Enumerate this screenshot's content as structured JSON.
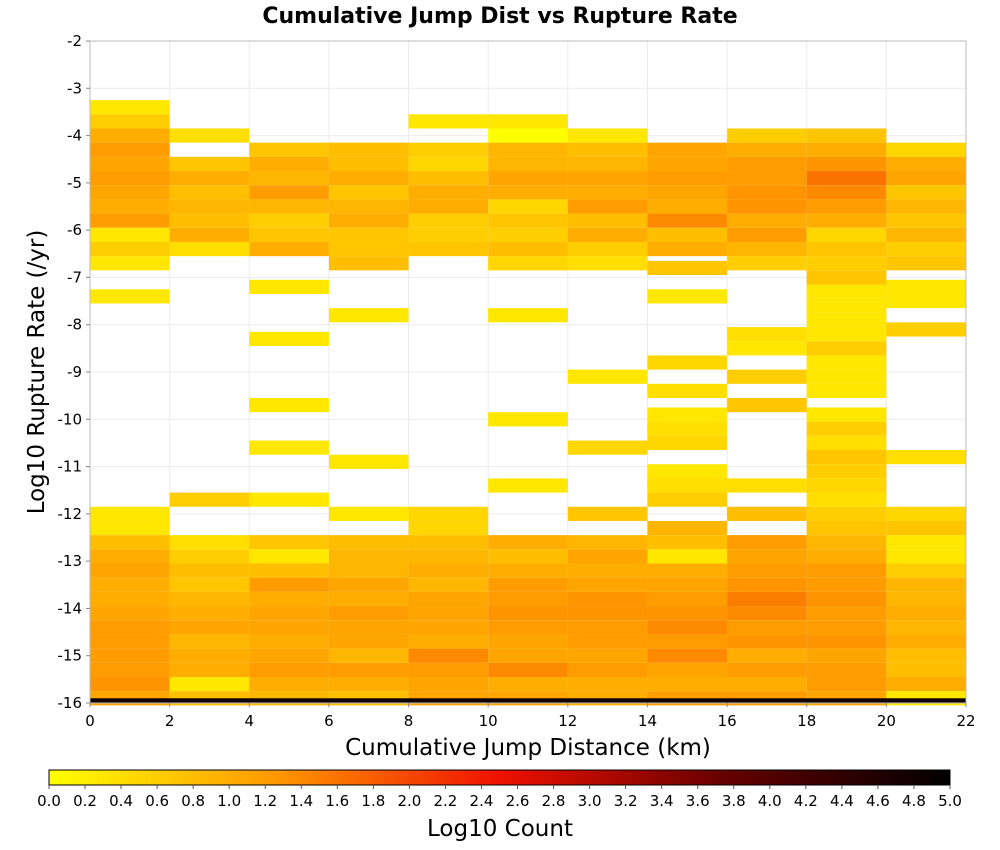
{
  "chart_data": {
    "type": "heatmap",
    "title": "Cumulative Jump Dist vs Rupture Rate",
    "xlabel": "Cumulative Jump Distance (km)",
    "ylabel": "Log10 Rupture Rate (/yr)",
    "colorbar_label": "Log10 Count",
    "xlim": [
      0,
      22
    ],
    "ylim": [
      -16,
      -2
    ],
    "x_ticks": [
      "0",
      "2",
      "4",
      "6",
      "8",
      "10",
      "12",
      "14",
      "16",
      "18",
      "20",
      "22"
    ],
    "y_ticks": [
      "-2",
      "-3",
      "-4",
      "-5",
      "-6",
      "-7",
      "-8",
      "-9",
      "-10",
      "-11",
      "-12",
      "-13",
      "-14",
      "-15",
      "-16"
    ],
    "colorbar_ticks": [
      "0.0",
      "0.2",
      "0.4",
      "0.6",
      "0.8",
      "1.0",
      "1.2",
      "1.4",
      "1.6",
      "1.8",
      "2.0",
      "2.2",
      "2.4",
      "2.6",
      "2.8",
      "3.0",
      "3.2",
      "3.4",
      "3.6",
      "3.8",
      "4.0",
      "4.2",
      "4.4",
      "4.6",
      "4.8",
      "5.0"
    ],
    "colorbar_range": [
      0,
      5
    ],
    "colormap": [
      "#ffff00",
      "#ff9900",
      "#ee1100",
      "#660000",
      "#000000"
    ],
    "grid": true,
    "x_bin_width": 2,
    "y_bin_height": 0.3,
    "columns": [
      {
        "x": 1,
        "cells": [
          [
            -3.4,
            0.3
          ],
          [
            -3.7,
            0.6
          ],
          [
            -4.0,
            1.0
          ],
          [
            -4.3,
            1.2
          ],
          [
            -4.6,
            1.1
          ],
          [
            -4.9,
            1.2
          ],
          [
            -5.2,
            1.1
          ],
          [
            -5.5,
            1.0
          ],
          [
            -5.8,
            1.2
          ],
          [
            -6.1,
            0.3
          ],
          [
            -6.4,
            0.6
          ],
          [
            -6.7,
            0.3
          ],
          [
            -7.4,
            0.3
          ],
          [
            -12.0,
            0.3
          ],
          [
            -12.3,
            0.3
          ],
          [
            -12.6,
            0.8
          ],
          [
            -12.9,
            1.0
          ],
          [
            -13.2,
            1.1
          ],
          [
            -13.5,
            1.0
          ],
          [
            -13.8,
            1.0
          ],
          [
            -14.1,
            1.1
          ],
          [
            -14.4,
            1.2
          ],
          [
            -14.7,
            1.2
          ],
          [
            -15.0,
            1.2
          ],
          [
            -15.3,
            1.2
          ],
          [
            -15.6,
            1.3
          ],
          [
            -15.9,
            1.1
          ]
        ]
      },
      {
        "x": 3,
        "cells": [
          [
            -4.0,
            0.4
          ],
          [
            -4.6,
            0.7
          ],
          [
            -4.9,
            1.0
          ],
          [
            -5.2,
            0.8
          ],
          [
            -5.5,
            0.9
          ],
          [
            -5.8,
            0.8
          ],
          [
            -6.1,
            1.0
          ],
          [
            -6.4,
            0.4
          ],
          [
            -11.7,
            0.6
          ],
          [
            -12.6,
            0.4
          ],
          [
            -12.9,
            0.6
          ],
          [
            -13.2,
            0.8
          ],
          [
            -13.5,
            0.7
          ],
          [
            -13.8,
            0.9
          ],
          [
            -14.1,
            1.0
          ],
          [
            -14.4,
            1.1
          ],
          [
            -14.7,
            0.9
          ],
          [
            -15.0,
            1.0
          ],
          [
            -15.3,
            1.0
          ],
          [
            -15.6,
            0.3
          ],
          [
            -15.9,
            0.8
          ]
        ]
      },
      {
        "x": 5,
        "cells": [
          [
            -4.3,
            0.7
          ],
          [
            -4.6,
            1.0
          ],
          [
            -4.9,
            0.9
          ],
          [
            -5.2,
            1.2
          ],
          [
            -5.5,
            0.9
          ],
          [
            -5.8,
            0.6
          ],
          [
            -6.1,
            0.7
          ],
          [
            -6.4,
            1.0
          ],
          [
            -7.2,
            0.3
          ],
          [
            -8.3,
            0.3
          ],
          [
            -9.7,
            0.3
          ],
          [
            -10.6,
            0.3
          ],
          [
            -11.7,
            0.3
          ],
          [
            -12.6,
            0.7
          ],
          [
            -12.9,
            0.3
          ],
          [
            -13.2,
            0.8
          ],
          [
            -13.5,
            1.2
          ],
          [
            -13.8,
            1.0
          ],
          [
            -14.1,
            1.1
          ],
          [
            -14.4,
            1.1
          ],
          [
            -14.7,
            1.0
          ],
          [
            -15.0,
            1.1
          ],
          [
            -15.3,
            1.2
          ],
          [
            -15.6,
            1.0
          ],
          [
            -15.9,
            0.9
          ]
        ]
      },
      {
        "x": 7,
        "cells": [
          [
            -4.3,
            0.8
          ],
          [
            -4.6,
            0.8
          ],
          [
            -4.9,
            1.0
          ],
          [
            -5.2,
            0.7
          ],
          [
            -5.5,
            0.9
          ],
          [
            -5.8,
            1.0
          ],
          [
            -6.1,
            0.7
          ],
          [
            -6.4,
            0.7
          ],
          [
            -6.7,
            0.8
          ],
          [
            -7.8,
            0.3
          ],
          [
            -10.9,
            0.3
          ],
          [
            -12.0,
            0.3
          ],
          [
            -12.6,
            0.8
          ],
          [
            -12.9,
            0.9
          ],
          [
            -13.2,
            0.9
          ],
          [
            -13.5,
            1.1
          ],
          [
            -13.8,
            1.0
          ],
          [
            -14.1,
            1.2
          ],
          [
            -14.4,
            1.1
          ],
          [
            -14.7,
            1.1
          ],
          [
            -15.0,
            0.9
          ],
          [
            -15.3,
            1.2
          ],
          [
            -15.6,
            1.0
          ],
          [
            -15.9,
            0.8
          ]
        ]
      },
      {
        "x": 9,
        "cells": [
          [
            -3.7,
            0.3
          ],
          [
            -4.3,
            0.6
          ],
          [
            -4.6,
            0.5
          ],
          [
            -4.9,
            0.8
          ],
          [
            -5.2,
            1.0
          ],
          [
            -5.5,
            1.0
          ],
          [
            -5.8,
            0.6
          ],
          [
            -6.1,
            0.6
          ],
          [
            -6.4,
            0.7
          ],
          [
            -12.0,
            0.5
          ],
          [
            -12.3,
            0.5
          ],
          [
            -12.6,
            0.8
          ],
          [
            -12.9,
            0.9
          ],
          [
            -13.2,
            1.0
          ],
          [
            -13.5,
            0.9
          ],
          [
            -13.8,
            1.1
          ],
          [
            -14.1,
            1.1
          ],
          [
            -14.4,
            1.1
          ],
          [
            -14.7,
            1.0
          ],
          [
            -15.0,
            1.4
          ],
          [
            -15.3,
            1.2
          ],
          [
            -15.6,
            1.1
          ],
          [
            -15.9,
            1.1
          ]
        ]
      },
      {
        "x": 11,
        "cells": [
          [
            -3.7,
            0.3
          ],
          [
            -4.0,
            0.0
          ],
          [
            -4.3,
            0.9
          ],
          [
            -4.6,
            0.9
          ],
          [
            -4.9,
            1.1
          ],
          [
            -5.2,
            1.0
          ],
          [
            -5.5,
            0.5
          ],
          [
            -5.8,
            0.7
          ],
          [
            -6.1,
            0.6
          ],
          [
            -6.4,
            0.8
          ],
          [
            -6.7,
            0.5
          ],
          [
            -7.8,
            0.3
          ],
          [
            -10.0,
            0.3
          ],
          [
            -11.4,
            0.3
          ],
          [
            -12.6,
            1.0
          ],
          [
            -12.9,
            0.8
          ],
          [
            -13.2,
            1.0
          ],
          [
            -13.5,
            1.2
          ],
          [
            -13.8,
            1.2
          ],
          [
            -14.1,
            1.3
          ],
          [
            -14.4,
            1.2
          ],
          [
            -14.7,
            1.1
          ],
          [
            -15.0,
            1.1
          ],
          [
            -15.3,
            1.4
          ],
          [
            -15.6,
            1.0
          ],
          [
            -15.9,
            1.1
          ]
        ]
      },
      {
        "x": 13,
        "cells": [
          [
            -4.0,
            0.3
          ],
          [
            -4.3,
            0.8
          ],
          [
            -4.6,
            0.9
          ],
          [
            -4.9,
            1.1
          ],
          [
            -5.2,
            1.0
          ],
          [
            -5.5,
            1.2
          ],
          [
            -5.8,
            0.8
          ],
          [
            -6.1,
            1.0
          ],
          [
            -6.4,
            0.6
          ],
          [
            -6.7,
            0.4
          ],
          [
            -9.1,
            0.3
          ],
          [
            -10.6,
            0.5
          ],
          [
            -12.0,
            0.7
          ],
          [
            -12.6,
            0.9
          ],
          [
            -12.9,
            1.1
          ],
          [
            -13.2,
            1.0
          ],
          [
            -13.5,
            1.1
          ],
          [
            -13.8,
            1.3
          ],
          [
            -14.1,
            1.3
          ],
          [
            -14.4,
            1.2
          ],
          [
            -14.7,
            1.2
          ],
          [
            -15.0,
            1.1
          ],
          [
            -15.3,
            1.2
          ],
          [
            -15.6,
            1.0
          ],
          [
            -15.9,
            1.0
          ]
        ]
      },
      {
        "x": 15,
        "cells": [
          [
            -4.3,
            1.1
          ],
          [
            -4.6,
            1.1
          ],
          [
            -4.9,
            1.2
          ],
          [
            -5.2,
            1.1
          ],
          [
            -5.5,
            1.0
          ],
          [
            -5.8,
            1.4
          ],
          [
            -6.1,
            0.8
          ],
          [
            -6.4,
            1.0
          ],
          [
            -6.8,
            0.7
          ],
          [
            -7.4,
            0.3
          ],
          [
            -8.8,
            0.5
          ],
          [
            -9.4,
            0.4
          ],
          [
            -9.9,
            0.3
          ],
          [
            -10.2,
            0.4
          ],
          [
            -10.5,
            0.5
          ],
          [
            -11.1,
            0.3
          ],
          [
            -11.4,
            0.4
          ],
          [
            -11.7,
            0.6
          ],
          [
            -12.3,
            0.9
          ],
          [
            -12.6,
            0.8
          ],
          [
            -12.9,
            0.3
          ],
          [
            -13.2,
            1.0
          ],
          [
            -13.5,
            1.1
          ],
          [
            -13.8,
            1.2
          ],
          [
            -14.1,
            1.3
          ],
          [
            -14.4,
            1.4
          ],
          [
            -14.7,
            1.2
          ],
          [
            -15.0,
            1.4
          ],
          [
            -15.3,
            1.1
          ],
          [
            -15.6,
            1.0
          ],
          [
            -15.9,
            1.2
          ]
        ]
      },
      {
        "x": 17,
        "cells": [
          [
            -4.0,
            0.6
          ],
          [
            -4.3,
            1.0
          ],
          [
            -4.6,
            1.2
          ],
          [
            -4.9,
            1.2
          ],
          [
            -5.2,
            1.3
          ],
          [
            -5.5,
            1.3
          ],
          [
            -5.8,
            1.0
          ],
          [
            -6.1,
            1.2
          ],
          [
            -6.4,
            0.9
          ],
          [
            -6.7,
            0.6
          ],
          [
            -8.2,
            0.4
          ],
          [
            -8.5,
            0.3
          ],
          [
            -9.1,
            0.6
          ],
          [
            -9.7,
            0.7
          ],
          [
            -11.4,
            0.4
          ],
          [
            -12.0,
            0.8
          ],
          [
            -12.6,
            1.2
          ],
          [
            -12.9,
            1.1
          ],
          [
            -13.2,
            1.2
          ],
          [
            -13.5,
            1.3
          ],
          [
            -13.8,
            1.5
          ],
          [
            -14.1,
            1.4
          ],
          [
            -14.4,
            1.2
          ],
          [
            -14.7,
            1.3
          ],
          [
            -15.0,
            1.0
          ],
          [
            -15.3,
            1.2
          ],
          [
            -15.6,
            1.0
          ],
          [
            -15.9,
            1.2
          ]
        ]
      },
      {
        "x": 19,
        "cells": [
          [
            -4.0,
            0.7
          ],
          [
            -4.3,
            1.0
          ],
          [
            -4.6,
            1.3
          ],
          [
            -4.9,
            1.6
          ],
          [
            -5.2,
            1.4
          ],
          [
            -5.5,
            1.2
          ],
          [
            -5.8,
            1.0
          ],
          [
            -6.1,
            0.5
          ],
          [
            -6.4,
            0.7
          ],
          [
            -6.7,
            0.6
          ],
          [
            -7.0,
            0.7
          ],
          [
            -7.3,
            0.3
          ],
          [
            -7.6,
            0.3
          ],
          [
            -7.9,
            0.3
          ],
          [
            -8.2,
            0.3
          ],
          [
            -8.5,
            0.6
          ],
          [
            -8.8,
            0.3
          ],
          [
            -9.1,
            0.3
          ],
          [
            -9.4,
            0.3
          ],
          [
            -9.9,
            0.3
          ],
          [
            -10.2,
            0.6
          ],
          [
            -10.5,
            0.4
          ],
          [
            -10.8,
            0.7
          ],
          [
            -11.1,
            0.6
          ],
          [
            -11.4,
            0.5
          ],
          [
            -11.7,
            0.4
          ],
          [
            -12.0,
            0.6
          ],
          [
            -12.3,
            0.7
          ],
          [
            -12.6,
            0.9
          ],
          [
            -12.9,
            1.0
          ],
          [
            -13.2,
            1.2
          ],
          [
            -13.5,
            1.2
          ],
          [
            -13.8,
            1.3
          ],
          [
            -14.1,
            1.2
          ],
          [
            -14.4,
            1.2
          ],
          [
            -14.7,
            1.3
          ],
          [
            -15.0,
            1.1
          ],
          [
            -15.3,
            1.2
          ],
          [
            -15.6,
            1.2
          ],
          [
            -15.9,
            1.1
          ]
        ]
      },
      {
        "x": 21,
        "cells": [
          [
            -4.3,
            0.5
          ],
          [
            -4.6,
            1.0
          ],
          [
            -4.9,
            1.1
          ],
          [
            -5.2,
            0.7
          ],
          [
            -5.5,
            0.9
          ],
          [
            -5.8,
            0.7
          ],
          [
            -6.1,
            0.9
          ],
          [
            -6.4,
            0.6
          ],
          [
            -6.7,
            0.7
          ],
          [
            -7.2,
            0.3
          ],
          [
            -7.5,
            0.3
          ],
          [
            -8.1,
            0.6
          ],
          [
            -10.8,
            0.4
          ],
          [
            -12.0,
            0.5
          ],
          [
            -12.3,
            0.7
          ],
          [
            -12.6,
            0.3
          ],
          [
            -12.9,
            0.3
          ],
          [
            -13.2,
            0.6
          ],
          [
            -13.5,
            0.9
          ],
          [
            -13.8,
            0.9
          ],
          [
            -14.1,
            1.0
          ],
          [
            -14.4,
            0.9
          ],
          [
            -14.7,
            1.0
          ],
          [
            -15.0,
            0.8
          ],
          [
            -15.3,
            0.8
          ],
          [
            -15.6,
            1.0
          ],
          [
            -15.9,
            0.3
          ]
        ]
      }
    ],
    "bottom_band": {
      "y_range": [
        -16,
        -15.9
      ],
      "value": 4.8
    }
  }
}
